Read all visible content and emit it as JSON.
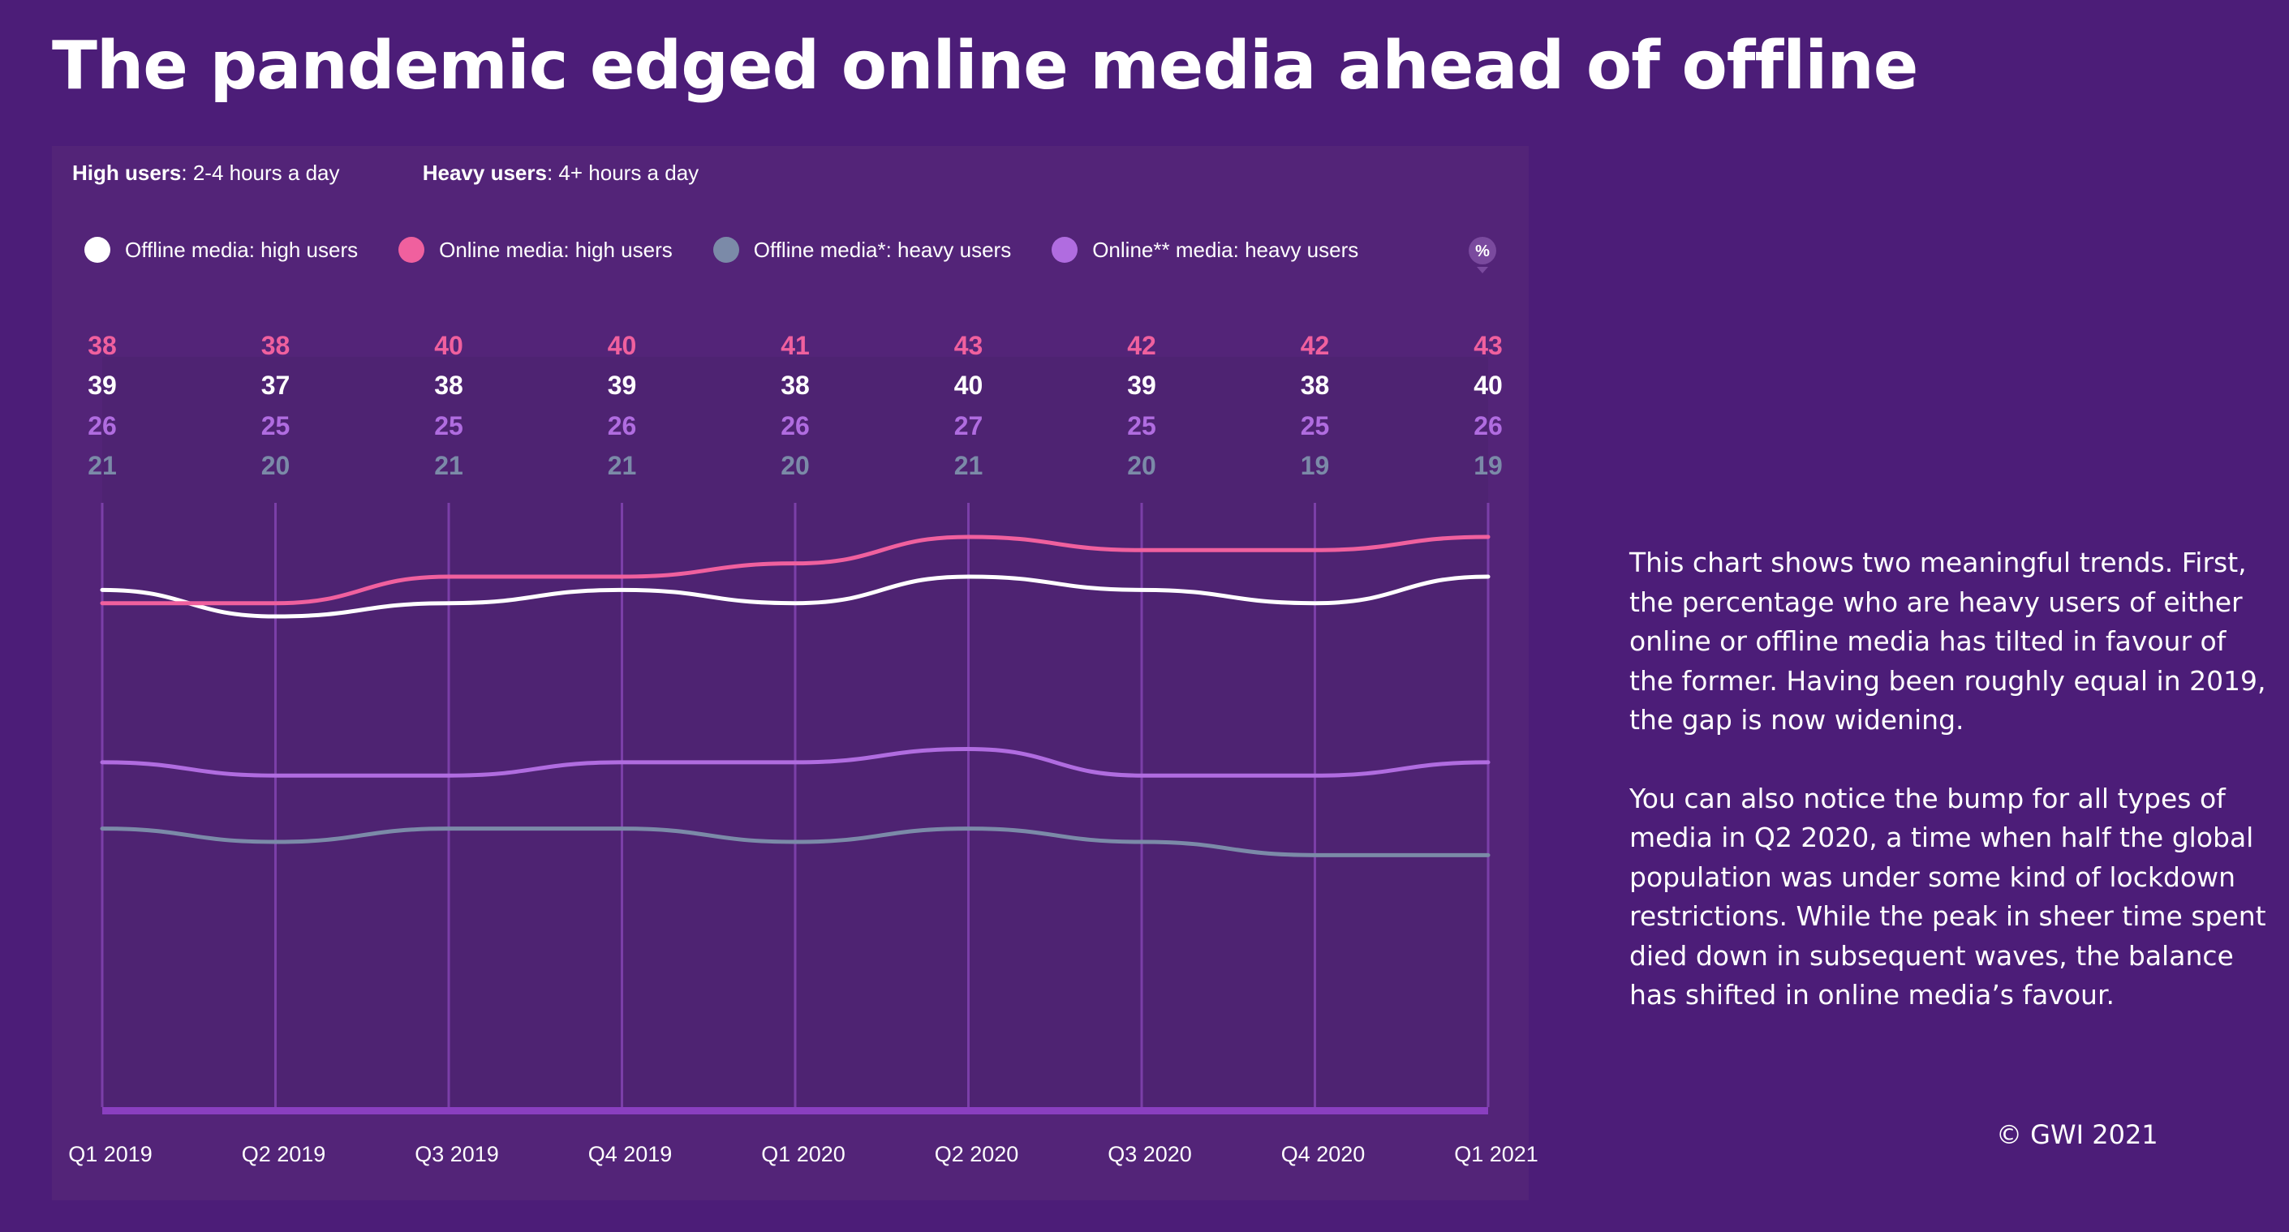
{
  "title": "The pandemic edged online media ahead of offline",
  "definitions": {
    "high_label": "High users",
    "high_text": ": 2-4 hours a day",
    "heavy_label": "Heavy users",
    "heavy_text": ": 4+ hours a day"
  },
  "percent_icon": "%",
  "description": {
    "paragraph1": "This chart shows two meaningful trends. First, the percentage who are heavy users of either online or offline media has tilted in favour of the former. Having been  roughly equal in 2019, the gap is now widening.",
    "paragraph2": "You can also notice the bump for all types of media in Q2 2020, a time when half the global population was under some kind of lockdown restrictions. While the peak in sheer time spent died down in subsequent waves, the balance has shifted in online media’s favour."
  },
  "copyright": "© GWI 2021",
  "colors": {
    "background": "#4c1d78",
    "panel": "#532478",
    "plot": "#4e2372",
    "gridline": "#7b3fa8",
    "baseline": "#8a3fc0"
  },
  "chart_data": {
    "type": "line",
    "categories": [
      "Q1 2019",
      "Q2 2019",
      "Q3 2019",
      "Q4 2019",
      "Q1 2020",
      "Q2 2020",
      "Q3 2020",
      "Q4 2020",
      "Q1 2021"
    ],
    "value_rows_order": [
      "Online media: high users",
      "Offline media: high users",
      "Online** media: heavy users",
      "Offline media*: heavy users"
    ],
    "series": [
      {
        "name": "Offline media: high users",
        "color": "#ffffff",
        "values": [
          39,
          37,
          38,
          39,
          38,
          40,
          39,
          38,
          40
        ]
      },
      {
        "name": "Online media: high users",
        "color": "#f0609e",
        "values": [
          38,
          38,
          40,
          40,
          41,
          43,
          42,
          42,
          43
        ]
      },
      {
        "name": "Offline media*: heavy users",
        "color": "#7b8aa8",
        "values": [
          21,
          20,
          21,
          21,
          20,
          21,
          20,
          19,
          19
        ]
      },
      {
        "name": "Online** media: heavy users",
        "color": "#b06ce0",
        "values": [
          26,
          25,
          25,
          26,
          26,
          27,
          25,
          25,
          26
        ]
      }
    ],
    "ylim": [
      0,
      46
    ],
    "grid": "vertical",
    "legend": "top"
  }
}
